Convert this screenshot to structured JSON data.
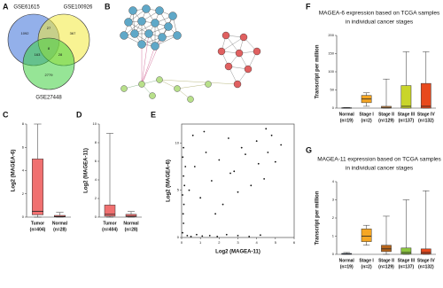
{
  "chart_data": [
    {
      "type": "venn",
      "panel": "A",
      "sets": [
        {
          "name": "GSE61615",
          "color": "#3a6fd8"
        },
        {
          "name": "GSE100926",
          "color": "#f2ea3a"
        },
        {
          "name": "GSE27448",
          "color": "#3fd03f"
        }
      ],
      "regions": [
        {
          "sets": [
            0
          ],
          "value": 1092
        },
        {
          "sets": [
            0,
            1
          ],
          "value": 27
        },
        {
          "sets": [
            1
          ],
          "value": 367
        },
        {
          "sets": [
            0,
            2
          ],
          "value": 163
        },
        {
          "sets": [
            0,
            1,
            2
          ],
          "value": 8
        },
        {
          "sets": [
            1,
            2
          ],
          "value": 28
        },
        {
          "sets": [
            2
          ],
          "value": 2779
        }
      ]
    },
    {
      "type": "network",
      "panel": "B"
    },
    {
      "type": "box",
      "panel": "C",
      "ylabel": "Log2 (MAGEA-6)",
      "categories": [
        "Tumor",
        "Normal"
      ],
      "category_notes": [
        "(n=404)",
        "(n=28)"
      ],
      "colors": [
        "#f07070",
        "#f07070"
      ],
      "boxes": [
        {
          "min": 0,
          "q1": 0.2,
          "median": 0.5,
          "q3": 5,
          "max": 8
        },
        {
          "min": 0,
          "q1": 0.02,
          "median": 0.05,
          "q3": 0.15,
          "max": 0.4
        }
      ],
      "ylim": [
        0,
        8
      ],
      "yticks": [
        0,
        2,
        4,
        6,
        8
      ]
    },
    {
      "type": "box",
      "panel": "D",
      "ylabel": "Log2 (MAGEA-11)",
      "categories": [
        "Tumor",
        "Normal"
      ],
      "category_notes": [
        "(n=404)",
        "(n=28)"
      ],
      "colors": [
        "#f07070",
        "#f07070"
      ],
      "boxes": [
        {
          "min": 0,
          "q1": 0.1,
          "median": 0.3,
          "q3": 1.3,
          "max": 9
        },
        {
          "min": 0,
          "q1": 0.05,
          "median": 0.1,
          "q3": 0.3,
          "max": 0.6
        }
      ],
      "ylim": [
        0,
        10
      ],
      "yticks": [
        0,
        2,
        4,
        6,
        8,
        10
      ]
    },
    {
      "type": "scatter",
      "panel": "E",
      "xlabel": "Log2 (MAGEA-11)",
      "ylabel": "Log2 (MAGEA-6)",
      "color": "#111111",
      "x": [
        0.05,
        0.1,
        0.08,
        0.12,
        0.05,
        0.15,
        0.1,
        0.2,
        0.06,
        0.1,
        0.3,
        0.5,
        0.8,
        1.1,
        1.5,
        1.9,
        2.4,
        3.0,
        3.6,
        4.2,
        0.4,
        0.7,
        1.0,
        1.3,
        1.6,
        2.0,
        2.5,
        3.2,
        4.0,
        4.6,
        2.8,
        3.4,
        4.1,
        4.8,
        3.7,
        4.4,
        5.0,
        2.2,
        3.0,
        5.3,
        1.8,
        2.6,
        0.6,
        1.2,
        4.5
      ],
      "y": [
        0.5,
        1.5,
        2.5,
        3.5,
        4.5,
        5.5,
        6.5,
        7.5,
        8.5,
        9.5,
        0.2,
        0.1,
        0.3,
        0.15,
        0.2,
        0.1,
        0.3,
        0.2,
        0.1,
        0.25,
        5.0,
        7.5,
        4.2,
        9.0,
        6.0,
        8.2,
        10.5,
        9.5,
        10.2,
        9.0,
        7.0,
        8.8,
        7.8,
        10.8,
        5.5,
        6.2,
        8.0,
        3.5,
        4.8,
        9.8,
        2.5,
        6.8,
        10.8,
        11.2,
        11.5
      ],
      "xlim": [
        0,
        6
      ],
      "xticks": [
        0,
        1,
        2,
        3,
        4,
        5,
        6
      ],
      "ylim": [
        0,
        12
      ],
      "yticks": [
        0,
        5,
        10
      ]
    },
    {
      "type": "box",
      "panel": "F",
      "title": [
        "MAGEA-6 expression based on TCGA samples",
        "in individual cancer stages"
      ],
      "ylabel": "Transcript per million",
      "categories": [
        "Normal",
        "Stage I",
        "Stage II",
        "Stage III",
        "Stage IV"
      ],
      "category_notes": [
        "(n=19)",
        "(n=2)",
        "(n=129)",
        "(n=137)",
        "(n=132)"
      ],
      "colors": [
        "#3b6fd1",
        "#f5a623",
        "#f0a050",
        "#c9d52a",
        "#e8491d"
      ],
      "boxes": [
        {
          "min": 0,
          "q1": 0,
          "median": 0.5,
          "q3": 1,
          "max": 2
        },
        {
          "min": 5,
          "q1": 15,
          "median": 25,
          "q3": 35,
          "max": 42
        },
        {
          "min": 0,
          "q1": 0,
          "median": 2,
          "q3": 5,
          "max": 80
        },
        {
          "min": 0,
          "q1": 0,
          "median": 5,
          "q3": 62,
          "max": 155
        },
        {
          "min": 0,
          "q1": 0,
          "median": 5,
          "q3": 68,
          "max": 155
        }
      ],
      "ylim": [
        0,
        200
      ],
      "yticks": [
        0,
        50,
        100,
        150,
        200
      ]
    },
    {
      "type": "box",
      "panel": "G",
      "title": [
        "MAGEA-11 expression based on TCGA samples",
        "in individual cancer stages"
      ],
      "ylabel": "Transcript per million",
      "categories": [
        "Normal",
        "Stage I",
        "Stage II",
        "Stage III",
        "Stage IV"
      ],
      "category_notes": [
        "(n=19)",
        "(n=2)",
        "(n=129)",
        "(n=137)",
        "(n=132)"
      ],
      "colors": [
        "#3b6fd1",
        "#f5a623",
        "#b5651d",
        "#8cc63f",
        "#e8491d"
      ],
      "boxes": [
        {
          "min": 0,
          "q1": 0,
          "median": 0.02,
          "q3": 0.05,
          "max": 0.1
        },
        {
          "min": 0.5,
          "q1": 0.7,
          "median": 1.0,
          "q3": 1.4,
          "max": 1.6
        },
        {
          "min": 0,
          "q1": 0.15,
          "median": 0.3,
          "q3": 0.5,
          "max": 2.1
        },
        {
          "min": 0,
          "q1": 0.02,
          "median": 0.1,
          "q3": 0.35,
          "max": 3
        },
        {
          "min": 0,
          "q1": 0.02,
          "median": 0.1,
          "q3": 0.3,
          "max": 3.5
        }
      ],
      "ylim": [
        0,
        4
      ],
      "yticks": [
        0,
        1,
        2,
        3,
        4
      ]
    }
  ]
}
